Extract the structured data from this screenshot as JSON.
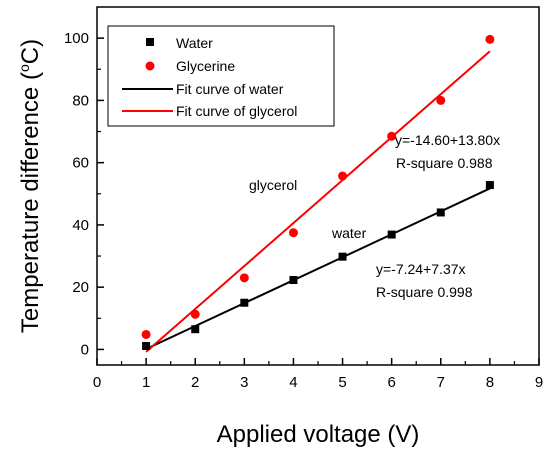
{
  "chart_data": {
    "type": "scatter",
    "xlabel": "Applied voltage (V)",
    "ylabel_main": "Temperature difference (",
    "ylabel_sup": "o",
    "ylabel_end": "C)",
    "xlim": [
      0,
      9
    ],
    "ylim": [
      -5,
      110
    ],
    "xticks": [
      0,
      1,
      2,
      3,
      4,
      5,
      6,
      7,
      8,
      9
    ],
    "yticks": [
      0,
      20,
      40,
      60,
      80,
      100
    ],
    "grid": false,
    "legend_position": "top-left",
    "series": [
      {
        "name": "Water",
        "marker": "square",
        "color": "#000000",
        "x": [
          1,
          2,
          3,
          4,
          5,
          6,
          7,
          8
        ],
        "y": [
          1.1,
          6.5,
          15,
          22.3,
          29.8,
          36.9,
          44,
          52.8
        ]
      },
      {
        "name": "Glycerine",
        "marker": "circle",
        "color": "#ff0000",
        "x": [
          1,
          2,
          3,
          4,
          5,
          6,
          7,
          8
        ],
        "y": [
          4.8,
          11.3,
          23,
          37.5,
          55.7,
          68.5,
          80,
          99.6
        ]
      }
    ],
    "fits": [
      {
        "name": "Fit curve of water",
        "color": "#000000",
        "intercept": -7.24,
        "slope": 7.37,
        "x_range": [
          1,
          8
        ]
      },
      {
        "name": "Fit curve of glycerol",
        "color": "#ff0000",
        "intercept": -14.6,
        "slope": 13.8,
        "x_range": [
          1,
          8
        ]
      }
    ],
    "annotations": {
      "glycerol_label": "glycerol",
      "water_label": "water",
      "glycerol_eq": "y=-14.60+13.80x",
      "glycerol_r2": "R-square 0.988",
      "water_eq": "y=-7.24+7.37x",
      "water_r2": "R-square 0.998"
    }
  }
}
